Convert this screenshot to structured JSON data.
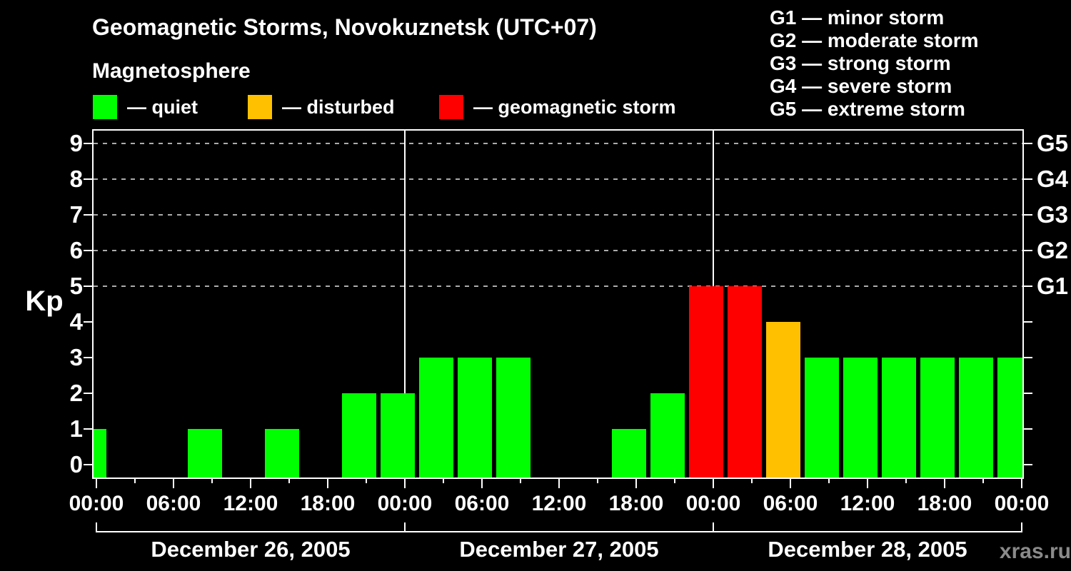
{
  "header": {
    "title": "Geomagnetic Storms, Novokuznetsk (UTC+07)",
    "subtitle": "Magnetosphere"
  },
  "legend": {
    "items": [
      {
        "name": "quiet",
        "label": "— quiet",
        "color": "#00FF00"
      },
      {
        "name": "disturbed",
        "label": "— disturbed",
        "color": "#FFC000"
      },
      {
        "name": "geomagnetic-storm",
        "label": "— geomagnetic storm",
        "color": "#FF0000"
      }
    ]
  },
  "g_scale_legend": {
    "items": [
      "G1 — minor storm",
      "G2 — moderate storm",
      "G3 — strong storm",
      "G4 — severe storm",
      "G5 — extreme storm"
    ]
  },
  "watermark": "xras.ru",
  "chart_data": {
    "type": "bar",
    "title": "Geomagnetic Storms, Novokuznetsk (UTC+07)",
    "ylabel": "Kp",
    "ylim": [
      0,
      9
    ],
    "y_ticks": [
      0,
      1,
      2,
      3,
      4,
      5,
      6,
      7,
      8,
      9
    ],
    "gridlines_at_kp": [
      5,
      6,
      7,
      8,
      9
    ],
    "grid": "dashed horizontal at storm levels only",
    "legend_position": "top",
    "interval_hours": 3,
    "x_tick_labels": [
      "00:00",
      "06:00",
      "12:00",
      "18:00",
      "00:00",
      "06:00",
      "12:00",
      "18:00",
      "00:00",
      "06:00",
      "12:00",
      "18:00",
      "00:00"
    ],
    "right_axis_labels": [
      {
        "label": "G1",
        "kp": 5
      },
      {
        "label": "G2",
        "kp": 6
      },
      {
        "label": "G3",
        "kp": 7
      },
      {
        "label": "G4",
        "kp": 8
      },
      {
        "label": "G5",
        "kp": 9
      }
    ],
    "days": [
      {
        "date": "December 26, 2005",
        "kp_values": [
          0,
          0,
          1,
          0,
          1,
          0,
          2,
          2
        ]
      },
      {
        "date": "December 27, 2005",
        "kp_values": [
          3,
          3,
          3,
          0,
          0,
          1,
          2,
          5
        ]
      },
      {
        "date": "December 28, 2005",
        "kp_values": [
          5,
          4,
          3,
          3,
          3,
          3,
          3,
          3
        ]
      }
    ],
    "leading_partial_bar_kp": 1,
    "colors": {
      "quiet": "#00FF00",
      "disturbed": "#FFC000",
      "storm": "#FF0000"
    },
    "color_rule": {
      "quiet_kp_max": 3,
      "disturbed_kp": 4,
      "storm_kp_min": 5
    }
  }
}
